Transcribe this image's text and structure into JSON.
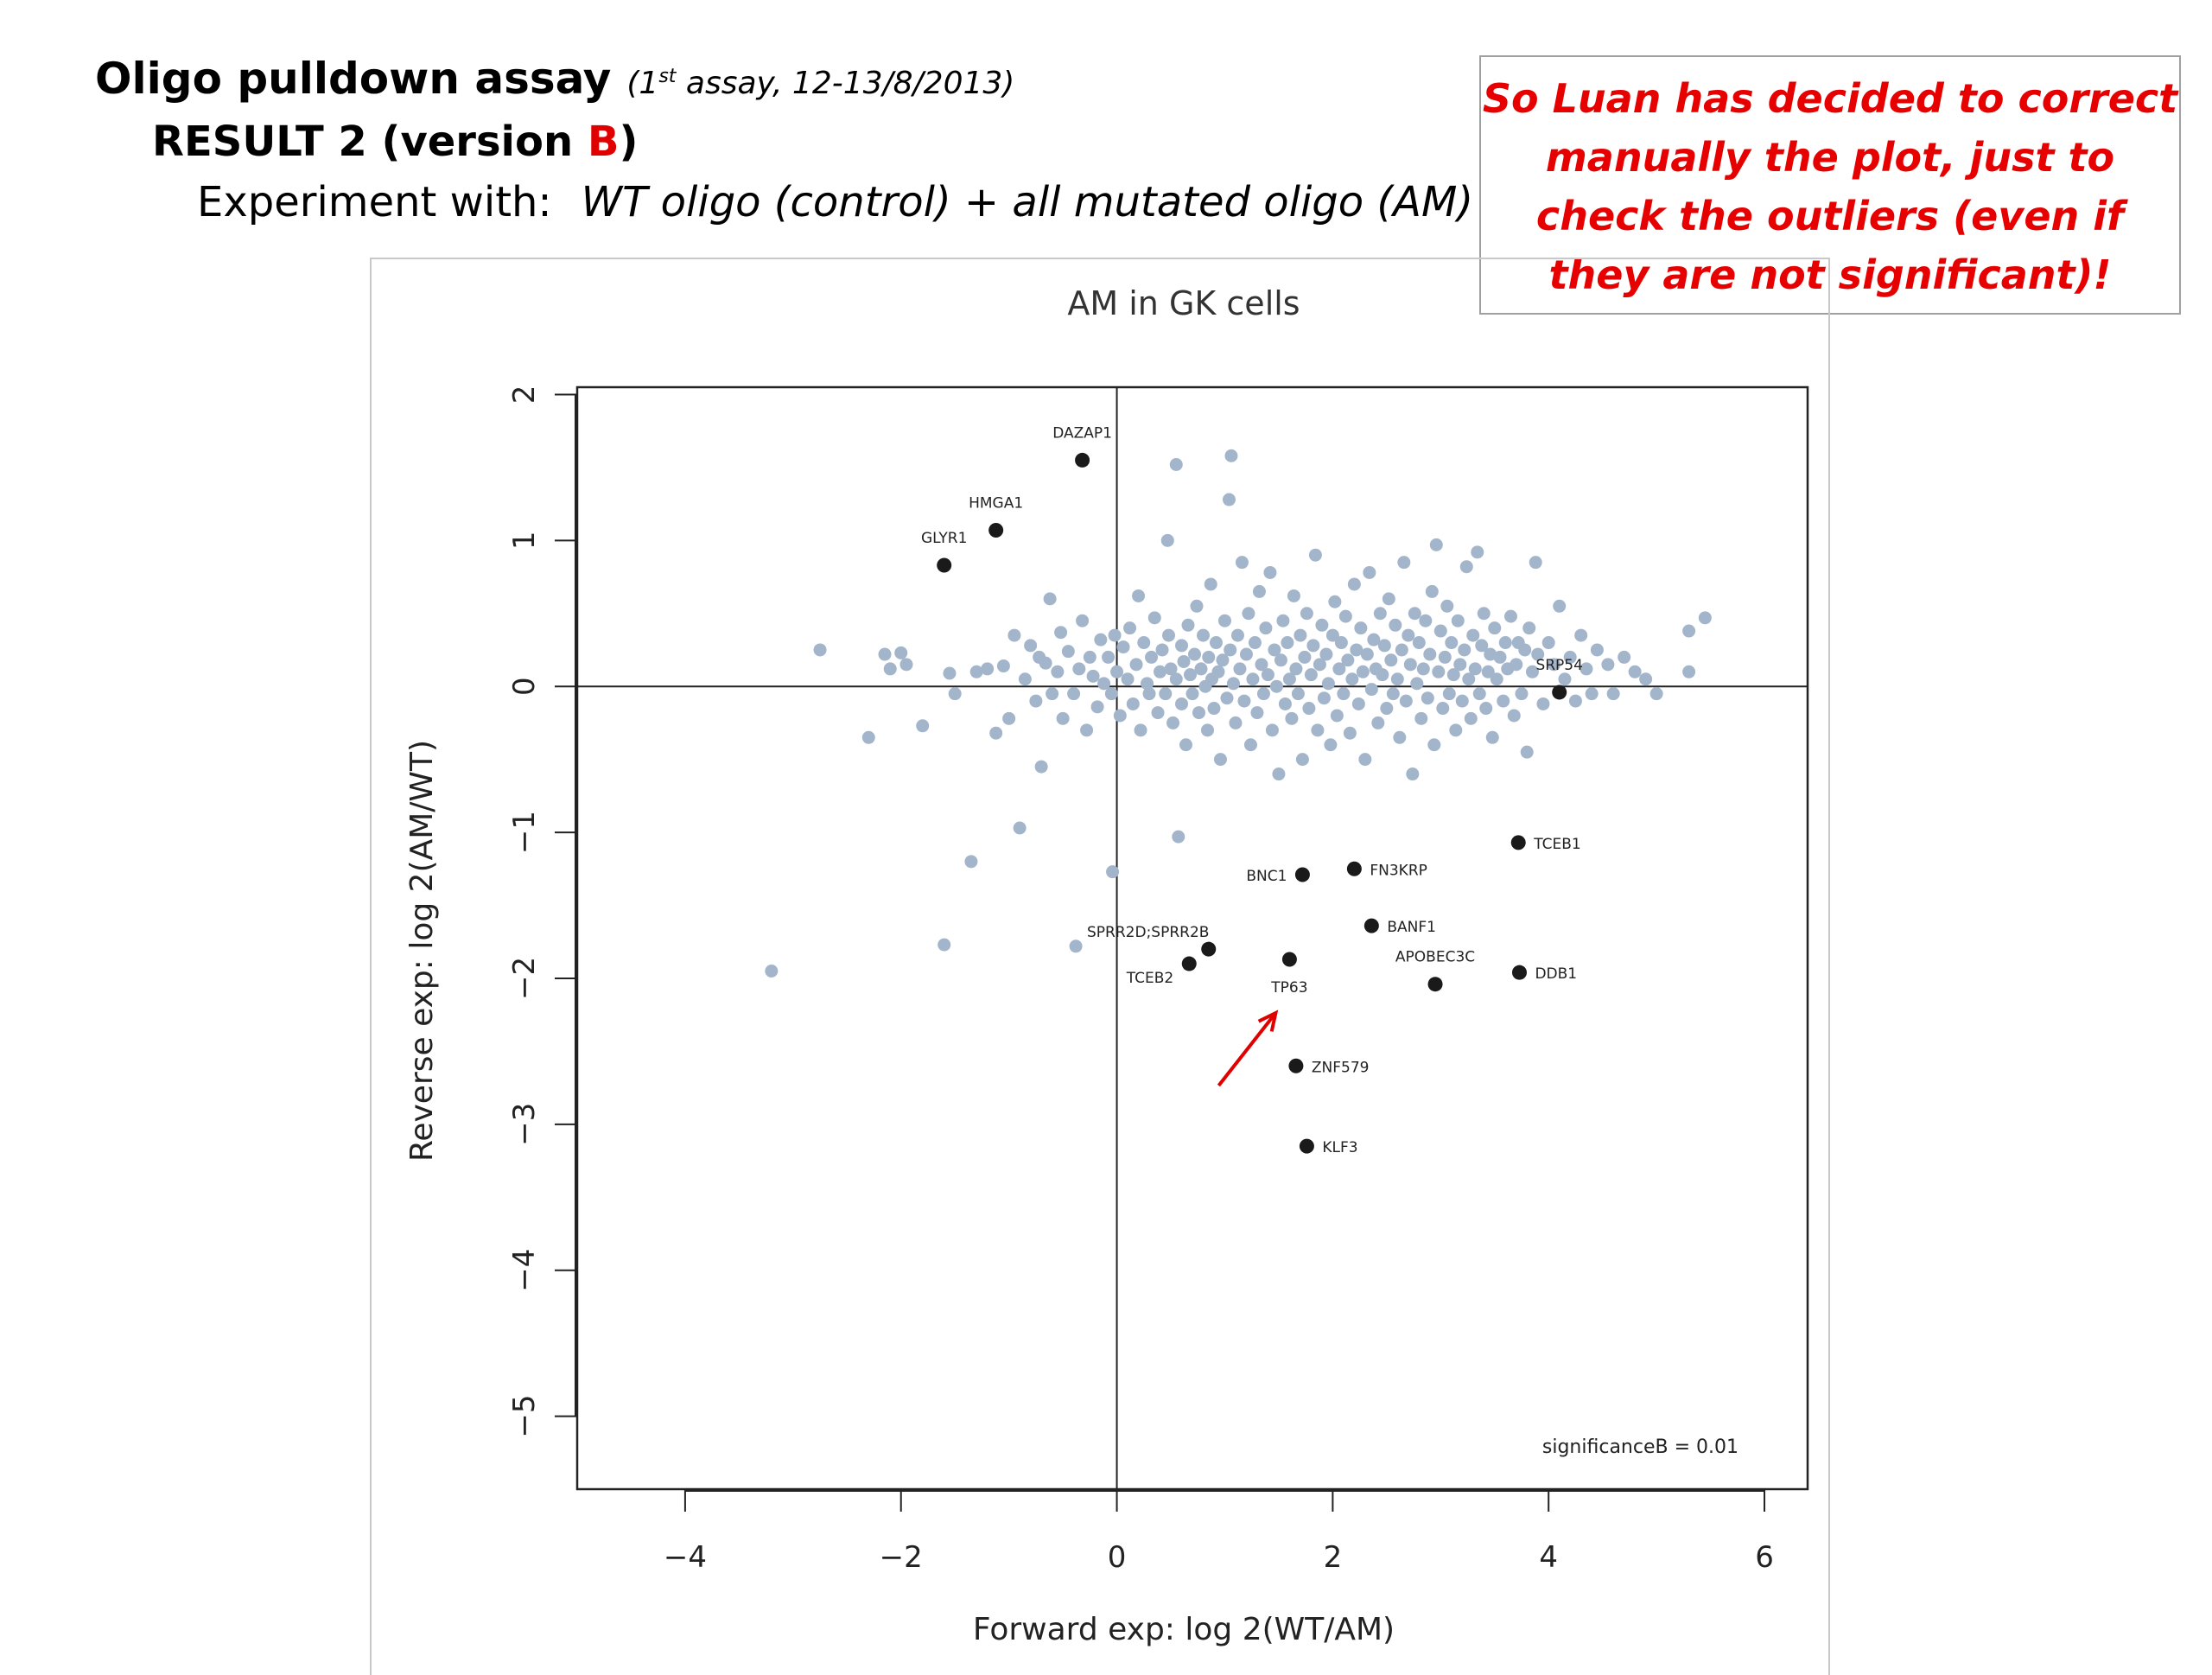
{
  "slide": {
    "title": "Oligo pulldown assay",
    "note_prefix": "(1",
    "note_sup": "st",
    "note_suffix": " assay, 12-13/8/2013)",
    "result_prefix": "RESULT  2  (version ",
    "result_version": "B",
    "result_suffix": ")",
    "experiment_label": "Experiment with:",
    "experiment_desc": "WT oligo (control)  +  all mutated oligo (AM)"
  },
  "callout": {
    "text": "So Luan has decided to correct manually the plot, just to check the outliers (even if they are not significant)!"
  },
  "chart_data": {
    "type": "scatter",
    "title": "AM in GK cells",
    "xlabel": "Forward exp: log  2(WT/AM)",
    "ylabel": "Reverse exp: log  2(AM/WT)",
    "xlim": [
      -5.0,
      6.4
    ],
    "ylim": [
      -5.5,
      2.05
    ],
    "xticks": [
      -4,
      -2,
      0,
      2,
      4,
      6
    ],
    "yticks": [
      -5,
      -4,
      -3,
      -2,
      -1,
      0,
      1,
      2
    ],
    "annotation": "significanceB = 0.01",
    "colors": {
      "background_points": "#a3b5cb",
      "significant_points": "#1a1a1a",
      "arrow": "#e00000"
    },
    "arrow_target": "TP63",
    "labeled_points": [
      {
        "label": "DAZAP1",
        "x": -0.32,
        "y": 1.55,
        "label_pos": "above"
      },
      {
        "label": "HMGA1",
        "x": -1.12,
        "y": 1.07,
        "label_pos": "above"
      },
      {
        "label": "GLYR1",
        "x": -1.6,
        "y": 0.83,
        "label_pos": "above"
      },
      {
        "label": "SRP54",
        "x": 4.1,
        "y": -0.04,
        "label_pos": "above"
      },
      {
        "label": "TCEB1",
        "x": 3.72,
        "y": -1.07,
        "label_pos": "right"
      },
      {
        "label": "FN3KRP",
        "x": 2.2,
        "y": -1.25,
        "label_pos": "right"
      },
      {
        "label": "BNC1",
        "x": 1.72,
        "y": -1.29,
        "label_pos": "left"
      },
      {
        "label": "BANF1",
        "x": 2.36,
        "y": -1.64,
        "label_pos": "right"
      },
      {
        "label": "SPRR2D;SPRR2B",
        "x": 0.85,
        "y": -1.8,
        "label_pos": "above-left"
      },
      {
        "label": "TCEB2",
        "x": 0.67,
        "y": -1.9,
        "label_pos": "below-left"
      },
      {
        "label": "TP63",
        "x": 1.6,
        "y": -1.87,
        "label_pos": "below"
      },
      {
        "label": "APOBEC3C",
        "x": 2.95,
        "y": -2.04,
        "label_pos": "above"
      },
      {
        "label": "DDB1",
        "x": 3.73,
        "y": -1.96,
        "label_pos": "right"
      },
      {
        "label": "ZNF579",
        "x": 1.66,
        "y": -2.6,
        "label_pos": "right"
      },
      {
        "label": "KLF3",
        "x": 1.76,
        "y": -3.15,
        "label_pos": "right"
      }
    ],
    "background_points": [
      [
        -3.2,
        -1.95
      ],
      [
        -2.75,
        0.25
      ],
      [
        -2.3,
        -0.35
      ],
      [
        -2.15,
        0.22
      ],
      [
        -2.1,
        0.12
      ],
      [
        -2.0,
        0.23
      ],
      [
        -1.95,
        0.15
      ],
      [
        -1.8,
        -0.27
      ],
      [
        -1.6,
        -1.77
      ],
      [
        -1.55,
        0.09
      ],
      [
        -1.5,
        -0.05
      ],
      [
        -1.35,
        -1.2
      ],
      [
        -1.3,
        0.1
      ],
      [
        -1.2,
        0.12
      ],
      [
        -1.12,
        -0.32
      ],
      [
        -1.05,
        0.14
      ],
      [
        -1.0,
        -0.22
      ],
      [
        -0.95,
        0.35
      ],
      [
        -0.9,
        -0.97
      ],
      [
        -0.85,
        0.05
      ],
      [
        -0.8,
        0.28
      ],
      [
        -0.75,
        -0.1
      ],
      [
        -0.72,
        0.2
      ],
      [
        -0.7,
        -0.55
      ],
      [
        -0.66,
        0.16
      ],
      [
        -0.62,
        0.6
      ],
      [
        -0.6,
        -0.05
      ],
      [
        -0.55,
        0.1
      ],
      [
        -0.52,
        0.37
      ],
      [
        -0.5,
        -0.22
      ],
      [
        -0.45,
        0.24
      ],
      [
        -0.4,
        -0.05
      ],
      [
        -0.38,
        -1.78
      ],
      [
        -0.35,
        0.12
      ],
      [
        -0.32,
        0.45
      ],
      [
        -0.28,
        -0.3
      ],
      [
        -0.25,
        0.2
      ],
      [
        -0.22,
        0.07
      ],
      [
        -0.18,
        -0.14
      ],
      [
        -0.15,
        0.32
      ],
      [
        -0.12,
        0.02
      ],
      [
        -0.08,
        0.2
      ],
      [
        -0.05,
        -0.05
      ],
      [
        -0.04,
        -1.27
      ],
      [
        -0.02,
        0.35
      ],
      [
        0.0,
        0.1
      ],
      [
        0.03,
        -0.2
      ],
      [
        0.06,
        0.27
      ],
      [
        0.1,
        0.05
      ],
      [
        0.12,
        0.4
      ],
      [
        0.15,
        -0.12
      ],
      [
        0.18,
        0.15
      ],
      [
        0.2,
        0.62
      ],
      [
        0.22,
        -0.3
      ],
      [
        0.25,
        0.3
      ],
      [
        0.28,
        0.02
      ],
      [
        0.3,
        -0.05
      ],
      [
        0.32,
        0.2
      ],
      [
        0.35,
        0.47
      ],
      [
        0.38,
        -0.18
      ],
      [
        0.4,
        0.1
      ],
      [
        0.42,
        0.25
      ],
      [
        0.45,
        -0.05
      ],
      [
        0.47,
        1.0
      ],
      [
        0.48,
        0.35
      ],
      [
        0.5,
        0.12
      ],
      [
        0.52,
        -0.25
      ],
      [
        0.55,
        1.52
      ],
      [
        0.55,
        0.05
      ],
      [
        0.57,
        -1.03
      ],
      [
        0.6,
        0.28
      ],
      [
        0.6,
        -0.12
      ],
      [
        0.62,
        0.17
      ],
      [
        0.64,
        -0.4
      ],
      [
        0.66,
        0.42
      ],
      [
        0.68,
        0.08
      ],
      [
        0.7,
        -0.05
      ],
      [
        0.72,
        0.22
      ],
      [
        0.74,
        0.55
      ],
      [
        0.76,
        -0.18
      ],
      [
        0.78,
        0.12
      ],
      [
        0.8,
        0.35
      ],
      [
        0.82,
        0.0
      ],
      [
        0.84,
        -0.3
      ],
      [
        0.85,
        0.2
      ],
      [
        0.87,
        0.7
      ],
      [
        0.88,
        0.05
      ],
      [
        0.9,
        -0.15
      ],
      [
        0.92,
        0.3
      ],
      [
        0.94,
        0.1
      ],
      [
        0.96,
        -0.5
      ],
      [
        0.98,
        0.18
      ],
      [
        1.0,
        0.45
      ],
      [
        1.02,
        -0.08
      ],
      [
        1.04,
        1.28
      ],
      [
        1.05,
        0.25
      ],
      [
        1.06,
        1.58
      ],
      [
        1.08,
        0.02
      ],
      [
        1.1,
        -0.25
      ],
      [
        1.12,
        0.35
      ],
      [
        1.14,
        0.12
      ],
      [
        1.16,
        0.85
      ],
      [
        1.18,
        -0.1
      ],
      [
        1.2,
        0.22
      ],
      [
        1.22,
        0.5
      ],
      [
        1.24,
        -0.4
      ],
      [
        1.26,
        0.05
      ],
      [
        1.28,
        0.3
      ],
      [
        1.3,
        -0.18
      ],
      [
        1.32,
        0.65
      ],
      [
        1.34,
        0.15
      ],
      [
        1.36,
        -0.05
      ],
      [
        1.38,
        0.4
      ],
      [
        1.4,
        0.08
      ],
      [
        1.42,
        0.78
      ],
      [
        1.44,
        -0.3
      ],
      [
        1.46,
        0.25
      ],
      [
        1.48,
        0.0
      ],
      [
        1.5,
        -0.6
      ],
      [
        1.52,
        0.18
      ],
      [
        1.54,
        0.45
      ],
      [
        1.56,
        -0.12
      ],
      [
        1.58,
        0.3
      ],
      [
        1.6,
        0.05
      ],
      [
        1.62,
        -0.22
      ],
      [
        1.64,
        0.62
      ],
      [
        1.66,
        0.12
      ],
      [
        1.68,
        -0.05
      ],
      [
        1.7,
        0.35
      ],
      [
        1.72,
        -0.5
      ],
      [
        1.74,
        0.2
      ],
      [
        1.76,
        0.5
      ],
      [
        1.78,
        -0.15
      ],
      [
        1.8,
        0.08
      ],
      [
        1.82,
        0.28
      ],
      [
        1.84,
        0.9
      ],
      [
        1.86,
        -0.3
      ],
      [
        1.88,
        0.15
      ],
      [
        1.9,
        0.42
      ],
      [
        1.92,
        -0.08
      ],
      [
        1.94,
        0.22
      ],
      [
        1.96,
        0.02
      ],
      [
        1.98,
        -0.4
      ],
      [
        2.0,
        0.35
      ],
      [
        2.02,
        0.58
      ],
      [
        2.04,
        -0.2
      ],
      [
        2.06,
        0.12
      ],
      [
        2.08,
        0.3
      ],
      [
        2.1,
        -0.05
      ],
      [
        2.12,
        0.48
      ],
      [
        2.14,
        0.18
      ],
      [
        2.16,
        -0.32
      ],
      [
        2.18,
        0.05
      ],
      [
        2.2,
        0.7
      ],
      [
        2.22,
        0.25
      ],
      [
        2.24,
        -0.12
      ],
      [
        2.26,
        0.4
      ],
      [
        2.28,
        0.1
      ],
      [
        2.3,
        -0.5
      ],
      [
        2.32,
        0.22
      ],
      [
        2.34,
        0.78
      ],
      [
        2.36,
        -0.02
      ],
      [
        2.38,
        0.32
      ],
      [
        2.4,
        0.12
      ],
      [
        2.42,
        -0.25
      ],
      [
        2.44,
        0.5
      ],
      [
        2.46,
        0.08
      ],
      [
        2.48,
        0.28
      ],
      [
        2.5,
        -0.15
      ],
      [
        2.52,
        0.6
      ],
      [
        2.54,
        0.18
      ],
      [
        2.56,
        -0.05
      ],
      [
        2.58,
        0.42
      ],
      [
        2.6,
        0.05
      ],
      [
        2.62,
        -0.35
      ],
      [
        2.64,
        0.25
      ],
      [
        2.66,
        0.85
      ],
      [
        2.68,
        -0.1
      ],
      [
        2.7,
        0.35
      ],
      [
        2.72,
        0.15
      ],
      [
        2.74,
        -0.6
      ],
      [
        2.76,
        0.5
      ],
      [
        2.78,
        0.02
      ],
      [
        2.8,
        0.3
      ],
      [
        2.82,
        -0.22
      ],
      [
        2.84,
        0.12
      ],
      [
        2.86,
        0.45
      ],
      [
        2.88,
        -0.08
      ],
      [
        2.9,
        0.22
      ],
      [
        2.92,
        0.65
      ],
      [
        2.94,
        -0.4
      ],
      [
        2.96,
        0.97
      ],
      [
        2.98,
        0.1
      ],
      [
        3.0,
        0.38
      ],
      [
        3.02,
        -0.15
      ],
      [
        3.04,
        0.2
      ],
      [
        3.06,
        0.55
      ],
      [
        3.08,
        -0.05
      ],
      [
        3.1,
        0.3
      ],
      [
        3.12,
        0.08
      ],
      [
        3.14,
        -0.3
      ],
      [
        3.16,
        0.45
      ],
      [
        3.18,
        0.15
      ],
      [
        3.2,
        -0.1
      ],
      [
        3.22,
        0.25
      ],
      [
        3.24,
        0.82
      ],
      [
        3.26,
        0.05
      ],
      [
        3.28,
        -0.22
      ],
      [
        3.3,
        0.35
      ],
      [
        3.32,
        0.12
      ],
      [
        3.34,
        0.92
      ],
      [
        3.36,
        -0.05
      ],
      [
        3.38,
        0.28
      ],
      [
        3.4,
        0.5
      ],
      [
        3.42,
        -0.15
      ],
      [
        3.44,
        0.1
      ],
      [
        3.46,
        0.22
      ],
      [
        3.48,
        -0.35
      ],
      [
        3.5,
        0.4
      ],
      [
        3.52,
        0.05
      ],
      [
        3.55,
        0.2
      ],
      [
        3.58,
        -0.1
      ],
      [
        3.6,
        0.3
      ],
      [
        3.62,
        0.12
      ],
      [
        3.65,
        0.48
      ],
      [
        3.68,
        -0.2
      ],
      [
        3.7,
        0.15
      ],
      [
        3.72,
        0.3
      ],
      [
        3.75,
        -0.05
      ],
      [
        3.78,
        0.25
      ],
      [
        3.8,
        -0.45
      ],
      [
        3.82,
        0.4
      ],
      [
        3.85,
        0.1
      ],
      [
        3.88,
        0.85
      ],
      [
        3.9,
        0.22
      ],
      [
        3.95,
        -0.12
      ],
      [
        4.0,
        0.3
      ],
      [
        4.05,
        0.15
      ],
      [
        4.1,
        0.55
      ],
      [
        4.15,
        0.05
      ],
      [
        4.2,
        0.2
      ],
      [
        4.25,
        -0.1
      ],
      [
        4.3,
        0.35
      ],
      [
        4.35,
        0.12
      ],
      [
        4.4,
        -0.05
      ],
      [
        4.45,
        0.25
      ],
      [
        4.55,
        0.15
      ],
      [
        4.6,
        -0.05
      ],
      [
        4.7,
        0.2
      ],
      [
        4.8,
        0.1
      ],
      [
        4.9,
        0.05
      ],
      [
        5.0,
        -0.05
      ],
      [
        5.3,
        0.1
      ],
      [
        5.3,
        0.38
      ],
      [
        5.45,
        0.47
      ]
    ]
  }
}
